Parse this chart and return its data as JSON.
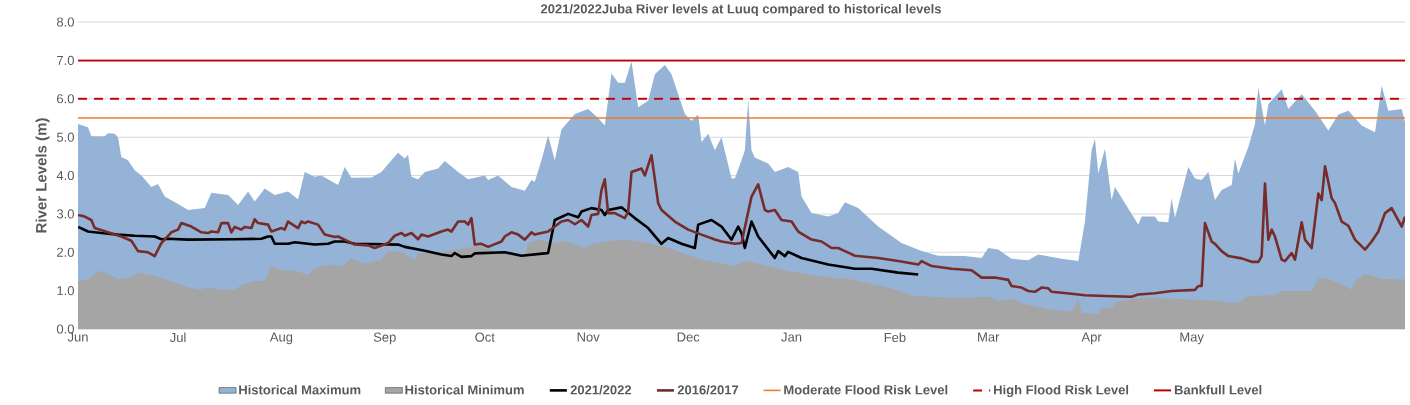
{
  "chart_data": {
    "type": "line",
    "title": "2021/2022Juba River levels at Luuq compared to historical levels",
    "ylabel": "River Levels (m)",
    "xlim": [
      "2021-06-01",
      "2022-07-04"
    ],
    "ylim": [
      0,
      8
    ],
    "xticks": [
      {
        "value": "2021-06-01",
        "label": "Jun"
      },
      {
        "value": "2021-07-01",
        "label": "Jul"
      },
      {
        "value": "2021-08-01",
        "label": "Aug"
      },
      {
        "value": "2021-09-01",
        "label": "Sep"
      },
      {
        "value": "2021-10-01",
        "label": "Oct"
      },
      {
        "value": "2021-11-01",
        "label": "Nov"
      },
      {
        "value": "2021-12-01",
        "label": "Dec"
      },
      {
        "value": "2022-01-01",
        "label": "Jan"
      },
      {
        "value": "2022-02-01",
        "label": "Feb"
      },
      {
        "value": "2022-03-01",
        "label": "Mar"
      },
      {
        "value": "2022-04-01",
        "label": "Apr"
      },
      {
        "value": "2022-05-01",
        "label": "May"
      }
    ],
    "yticks": [
      {
        "value": 0,
        "label": "0.0"
      },
      {
        "value": 1,
        "label": "1.0"
      },
      {
        "value": 2,
        "label": "2.0"
      },
      {
        "value": 3,
        "label": "3.0"
      },
      {
        "value": 4,
        "label": "4.0"
      },
      {
        "value": 5,
        "label": "5.0"
      },
      {
        "value": 6,
        "label": "6.0"
      },
      {
        "value": 7,
        "label": "7.0"
      },
      {
        "value": 8,
        "label": "8.0"
      }
    ],
    "grid": "y",
    "legend": "bottom",
    "series": [
      {
        "name": "Historical Maximum",
        "type": "area",
        "color": "#95b3d7",
        "x": [
          "2021-06-01",
          "2021-06-04",
          "2021-06-05",
          "2021-06-09",
          "2021-06-10",
          "2021-06-12",
          "2021-06-13",
          "2021-06-14",
          "2021-06-16",
          "2021-06-18",
          "2021-06-20",
          "2021-06-23",
          "2021-06-25",
          "2021-06-27",
          "2021-07-01",
          "2021-07-04",
          "2021-07-09",
          "2021-07-11",
          "2021-07-16",
          "2021-07-19",
          "2021-07-22",
          "2021-07-24",
          "2021-07-27",
          "2021-07-30",
          "2021-08-03",
          "2021-08-06",
          "2021-08-08",
          "2021-08-11",
          "2021-08-13",
          "2021-08-18",
          "2021-08-20",
          "2021-08-22",
          "2021-08-28",
          "2021-08-31",
          "2021-09-03",
          "2021-09-05",
          "2021-09-07",
          "2021-09-08",
          "2021-09-09",
          "2021-09-11",
          "2021-09-13",
          "2021-09-17",
          "2021-09-19",
          "2021-09-23",
          "2021-09-26",
          "2021-10-01",
          "2021-10-02",
          "2021-10-05",
          "2021-10-09",
          "2021-10-13",
          "2021-10-15",
          "2021-10-16",
          "2021-10-18",
          "2021-10-20",
          "2021-10-22",
          "2021-10-24",
          "2021-10-28",
          "2021-11-01",
          "2021-11-04",
          "2021-11-06",
          "2021-11-08",
          "2021-11-10",
          "2021-11-12",
          "2021-11-14",
          "2021-11-16",
          "2021-11-19",
          "2021-11-21",
          "2021-11-24",
          "2021-11-26",
          "2021-11-30",
          "2021-12-02",
          "2021-12-04",
          "2021-12-05",
          "2021-12-07",
          "2021-12-09",
          "2021-12-11",
          "2021-12-14",
          "2021-12-15",
          "2021-12-17",
          "2021-12-18",
          "2021-12-19",
          "2021-12-20",
          "2021-12-21",
          "2021-12-25",
          "2021-12-27",
          "2021-12-31",
          "2022-01-03",
          "2022-01-04",
          "2022-01-07",
          "2022-01-12",
          "2022-01-15",
          "2022-01-17",
          "2022-01-21",
          "2022-01-27",
          "2022-02-03",
          "2022-02-09",
          "2022-02-14",
          "2022-02-22",
          "2022-02-27",
          "2022-03-01",
          "2022-03-04",
          "2022-03-08",
          "2022-03-13",
          "2022-03-16",
          "2022-03-23",
          "2022-03-28",
          "2022-03-30",
          "2022-04-01",
          "2022-04-02",
          "2022-04-03",
          "2022-04-05",
          "2022-04-07",
          "2022-04-08",
          "2022-04-11",
          "2022-04-15",
          "2022-04-16",
          "2022-04-20",
          "2022-04-21",
          "2022-04-24",
          "2022-04-25",
          "2022-04-26",
          "2022-04-29",
          "2022-04-30",
          "2022-05-02",
          "2022-05-04",
          "2022-05-06",
          "2022-05-08",
          "2022-05-10",
          "2022-05-13",
          "2022-05-14",
          "2022-05-15",
          "2022-05-18",
          "2022-05-20",
          "2022-05-21",
          "2022-05-23",
          "2022-05-24",
          "2022-05-28",
          "2022-05-30",
          "2022-06-03",
          "2022-06-07",
          "2022-06-11",
          "2022-06-14",
          "2022-06-17",
          "2022-06-21",
          "2022-06-25",
          "2022-06-27",
          "2022-06-29",
          "2022-07-03",
          "2022-07-04"
        ],
        "values": [
          5.34,
          5.26,
          5.02,
          5.02,
          5.1,
          5.09,
          5.0,
          4.48,
          4.4,
          4.14,
          4.0,
          3.7,
          3.78,
          3.45,
          3.26,
          3.1,
          3.15,
          3.55,
          3.49,
          3.23,
          3.58,
          3.32,
          3.66,
          3.49,
          3.58,
          3.38,
          4.09,
          3.97,
          4.0,
          3.75,
          4.22,
          3.94,
          3.95,
          4.09,
          4.4,
          4.59,
          4.44,
          4.54,
          3.97,
          3.9,
          4.09,
          4.18,
          4.38,
          4.09,
          3.9,
          4.0,
          3.88,
          4.0,
          3.7,
          3.6,
          3.88,
          3.84,
          4.4,
          5.04,
          4.4,
          5.2,
          5.6,
          5.73,
          5.5,
          5.3,
          6.66,
          6.42,
          6.42,
          6.97,
          5.78,
          5.95,
          6.64,
          6.88,
          6.64,
          5.6,
          5.43,
          5.59,
          4.87,
          5.09,
          4.66,
          5.0,
          3.92,
          3.92,
          4.4,
          4.66,
          5.97,
          4.66,
          4.47,
          4.31,
          4.09,
          4.22,
          4.09,
          3.45,
          3.02,
          2.93,
          3.02,
          3.3,
          3.15,
          2.67,
          2.24,
          2.03,
          1.91,
          1.9,
          1.85,
          2.11,
          2.07,
          1.83,
          1.79,
          1.94,
          1.83,
          1.77,
          2.8,
          4.66,
          4.96,
          4.05,
          4.7,
          3.36,
          3.7,
          3.28,
          2.72,
          2.93,
          2.93,
          2.8,
          2.78,
          3.41,
          2.89,
          3.88,
          4.22,
          3.92,
          3.88,
          4.09,
          3.36,
          3.62,
          3.75,
          4.44,
          4.05,
          4.74,
          5.34,
          6.29,
          5.3,
          5.86,
          6.25,
          5.73,
          6.12,
          5.69,
          5.17,
          5.59,
          5.69,
          5.3,
          5.13,
          6.34,
          5.69,
          5.73,
          5.39
        ]
      },
      {
        "name": "Historical Minimum",
        "type": "area",
        "color": "#a5a5a5",
        "x": [
          "2021-06-01",
          "2021-06-04",
          "2021-06-07",
          "2021-06-09",
          "2021-06-13",
          "2021-06-16",
          "2021-06-19",
          "2021-06-25",
          "2021-06-30",
          "2021-07-03",
          "2021-07-07",
          "2021-07-10",
          "2021-07-14",
          "2021-07-18",
          "2021-07-20",
          "2021-07-24",
          "2021-07-27",
          "2021-07-29",
          "2021-07-31",
          "2021-08-05",
          "2021-08-09",
          "2021-08-11",
          "2021-08-16",
          "2021-08-19",
          "2021-08-22",
          "2021-08-26",
          "2021-08-31",
          "2021-09-02",
          "2021-09-06",
          "2021-09-10",
          "2021-09-11",
          "2021-09-16",
          "2021-09-29",
          "2021-10-05",
          "2021-10-13",
          "2021-10-14",
          "2021-10-17",
          "2021-10-22",
          "2021-10-25",
          "2021-10-31",
          "2021-11-03",
          "2021-11-12",
          "2021-11-19",
          "2021-11-25",
          "2021-12-05",
          "2021-12-15",
          "2021-12-18",
          "2021-12-23",
          "2021-12-31",
          "2022-01-09",
          "2022-01-19",
          "2022-01-28",
          "2022-02-04",
          "2022-02-07",
          "2022-02-17",
          "2022-02-22",
          "2022-03-02",
          "2022-03-04",
          "2022-03-08",
          "2022-03-12",
          "2022-03-20",
          "2022-03-26",
          "2022-03-28",
          "2022-03-29",
          "2022-04-03",
          "2022-04-04",
          "2022-04-07",
          "2022-04-09",
          "2022-04-17",
          "2022-05-10",
          "2022-05-11",
          "2022-05-15",
          "2022-05-18",
          "2022-05-26",
          "2022-05-28",
          "2022-06-06",
          "2022-06-08",
          "2022-06-11",
          "2022-06-16",
          "2022-06-18",
          "2022-06-19",
          "2022-06-22",
          "2022-06-27",
          "2022-07-04"
        ],
        "values": [
          1.25,
          1.29,
          1.51,
          1.47,
          1.31,
          1.31,
          1.47,
          1.36,
          1.22,
          1.12,
          1.02,
          1.08,
          1.02,
          1.03,
          1.14,
          1.25,
          1.25,
          1.64,
          1.55,
          1.51,
          1.42,
          1.59,
          1.68,
          1.62,
          1.84,
          1.71,
          1.81,
          2.03,
          2.01,
          1.81,
          1.98,
          1.98,
          2.16,
          1.98,
          1.91,
          2.24,
          2.33,
          2.24,
          2.3,
          2.11,
          2.24,
          2.33,
          2.24,
          2.11,
          1.81,
          1.64,
          1.77,
          1.68,
          1.51,
          1.38,
          1.29,
          1.12,
          0.95,
          0.86,
          0.82,
          0.82,
          0.84,
          0.73,
          0.79,
          0.65,
          0.5,
          0.45,
          0.78,
          0.43,
          0.39,
          0.56,
          0.56,
          0.72,
          0.82,
          0.73,
          0.69,
          0.69,
          0.86,
          0.88,
          0.99,
          0.99,
          1.32,
          1.31,
          1.12,
          1.02,
          1.25,
          1.44,
          1.31,
          1.29
        ]
      },
      {
        "name": "2021/2022",
        "color": "#000000",
        "x": [
          "2021-06-01",
          "2021-06-04",
          "2021-06-08",
          "2021-06-13",
          "2021-06-18",
          "2021-06-24",
          "2021-06-26",
          "2021-06-28",
          "2021-07-04",
          "2021-07-18",
          "2021-07-26",
          "2021-07-28",
          "2021-07-29",
          "2021-07-30",
          "2021-08-03",
          "2021-08-05",
          "2021-08-11",
          "2021-08-15",
          "2021-08-17",
          "2021-08-20",
          "2021-08-23",
          "2021-09-05",
          "2021-09-07",
          "2021-09-13",
          "2021-09-18",
          "2021-09-21",
          "2021-09-22",
          "2021-09-24",
          "2021-09-27",
          "2021-09-28",
          "2021-10-07",
          "2021-10-12",
          "2021-10-19",
          "2021-10-20",
          "2021-10-22",
          "2021-10-26",
          "2021-10-29",
          "2021-10-30",
          "2021-11-02",
          "2021-11-05",
          "2021-11-06",
          "2021-11-07",
          "2021-11-11",
          "2021-11-12",
          "2021-11-15",
          "2021-11-19",
          "2021-11-23",
          "2021-11-25",
          "2021-11-29",
          "2021-12-03",
          "2021-12-04",
          "2021-12-08",
          "2021-12-11",
          "2021-12-14",
          "2021-12-16",
          "2021-12-17",
          "2021-12-18",
          "2021-12-20",
          "2021-12-22",
          "2021-12-27",
          "2021-12-28",
          "2021-12-30",
          "2021-12-31",
          "2022-01-04",
          "2022-01-12",
          "2022-01-20",
          "2022-01-25",
          "2022-02-02",
          "2022-02-08"
        ],
        "values": [
          2.66,
          2.54,
          2.5,
          2.46,
          2.43,
          2.41,
          2.34,
          2.35,
          2.33,
          2.34,
          2.35,
          2.41,
          2.41,
          2.22,
          2.22,
          2.26,
          2.2,
          2.22,
          2.28,
          2.28,
          2.22,
          2.2,
          2.14,
          2.04,
          1.94,
          1.9,
          1.98,
          1.88,
          1.9,
          1.97,
          2.0,
          1.91,
          1.97,
          1.98,
          2.84,
          3.0,
          2.91,
          3.06,
          3.15,
          3.1,
          2.97,
          3.1,
          3.17,
          3.1,
          2.89,
          2.63,
          2.22,
          2.37,
          2.22,
          2.11,
          2.72,
          2.84,
          2.67,
          2.33,
          2.67,
          2.5,
          2.11,
          2.8,
          2.41,
          1.85,
          2.03,
          1.9,
          2.01,
          1.85,
          1.68,
          1.57,
          1.57,
          1.47,
          1.42
        ]
      },
      {
        "name": "2016/2017",
        "color": "#772c2a",
        "x": [
          "2021-06-01",
          "2021-06-03",
          "2021-06-05",
          "2021-06-06",
          "2021-06-10",
          "2021-06-14",
          "2021-06-17",
          "2021-06-19",
          "2021-06-22",
          "2021-06-24",
          "2021-06-26",
          "2021-06-29",
          "2021-07-01",
          "2021-07-02",
          "2021-07-05",
          "2021-07-08",
          "2021-07-10",
          "2021-07-11",
          "2021-07-13",
          "2021-07-14",
          "2021-07-16",
          "2021-07-17",
          "2021-07-18",
          "2021-07-20",
          "2021-07-21",
          "2021-07-23",
          "2021-07-24",
          "2021-07-25",
          "2021-07-28",
          "2021-07-29",
          "2021-08-01",
          "2021-08-02",
          "2021-08-03",
          "2021-08-06",
          "2021-08-07",
          "2021-08-08",
          "2021-08-09",
          "2021-08-12",
          "2021-08-14",
          "2021-08-17",
          "2021-08-18",
          "2021-08-23",
          "2021-08-27",
          "2021-08-29",
          "2021-09-02",
          "2021-09-04",
          "2021-09-06",
          "2021-09-07",
          "2021-09-09",
          "2021-09-11",
          "2021-09-12",
          "2021-09-14",
          "2021-09-18",
          "2021-09-20",
          "2021-09-21",
          "2021-09-23",
          "2021-09-25",
          "2021-09-26",
          "2021-09-27",
          "2021-09-28",
          "2021-09-30",
          "2021-10-02",
          "2021-10-06",
          "2021-10-07",
          "2021-10-09",
          "2021-10-11",
          "2021-10-13",
          "2021-10-15",
          "2021-10-16",
          "2021-10-20",
          "2021-10-24",
          "2021-10-26",
          "2021-10-28",
          "2021-10-30",
          "2021-11-01",
          "2021-11-02",
          "2021-11-04",
          "2021-11-05",
          "2021-11-06",
          "2021-11-07",
          "2021-11-09",
          "2021-11-12",
          "2021-11-13",
          "2021-11-14",
          "2021-11-17",
          "2021-11-18",
          "2021-11-20",
          "2021-11-22",
          "2021-11-23",
          "2021-11-27",
          "2021-12-01",
          "2021-12-05",
          "2021-12-09",
          "2021-12-11",
          "2021-12-15",
          "2021-12-17",
          "2021-12-20",
          "2021-12-22",
          "2021-12-24",
          "2021-12-25",
          "2021-12-27",
          "2021-12-29",
          "2022-01-01",
          "2022-01-03",
          "2022-01-07",
          "2022-01-10",
          "2022-01-13",
          "2022-01-15",
          "2022-01-17",
          "2022-01-20",
          "2022-01-27",
          "2022-02-02",
          "2022-02-08",
          "2022-02-09",
          "2022-02-12",
          "2022-02-18",
          "2022-02-24",
          "2022-02-27",
          "2022-03-03",
          "2022-03-07",
          "2022-03-08",
          "2022-03-11",
          "2022-03-13",
          "2022-03-15",
          "2022-03-17",
          "2022-03-19",
          "2022-03-20",
          "2022-03-26",
          "2022-03-30",
          "2022-04-05",
          "2022-04-13",
          "2022-04-15",
          "2022-04-20",
          "2022-04-25",
          "2022-05-02",
          "2022-05-03",
          "2022-05-04",
          "2022-05-05",
          "2022-05-07",
          "2022-05-08",
          "2022-05-10",
          "2022-05-12",
          "2022-05-16",
          "2022-05-19",
          "2022-05-21",
          "2022-05-22",
          "2022-05-23",
          "2022-05-24",
          "2022-05-25",
          "2022-05-26",
          "2022-05-28",
          "2022-05-29",
          "2022-05-31",
          "2022-06-01",
          "2022-06-03",
          "2022-06-04",
          "2022-06-06",
          "2022-06-08",
          "2022-06-09",
          "2022-06-10",
          "2022-06-12",
          "2022-06-13",
          "2022-06-15",
          "2022-06-17",
          "2022-06-19",
          "2022-06-22",
          "2022-06-24",
          "2022-06-26",
          "2022-06-28",
          "2022-06-30",
          "2022-07-03",
          "2022-07-04"
        ],
        "values": [
          2.97,
          2.93,
          2.84,
          2.63,
          2.52,
          2.41,
          2.3,
          2.03,
          2.0,
          1.9,
          2.24,
          2.52,
          2.59,
          2.76,
          2.67,
          2.52,
          2.5,
          2.54,
          2.52,
          2.76,
          2.76,
          2.52,
          2.66,
          2.59,
          2.66,
          2.63,
          2.86,
          2.76,
          2.72,
          2.54,
          2.63,
          2.59,
          2.8,
          2.63,
          2.8,
          2.76,
          2.8,
          2.72,
          2.46,
          2.4,
          2.41,
          2.2,
          2.18,
          2.11,
          2.24,
          2.43,
          2.5,
          2.43,
          2.5,
          2.34,
          2.46,
          2.41,
          2.54,
          2.59,
          2.54,
          2.8,
          2.8,
          2.72,
          2.89,
          2.2,
          2.22,
          2.14,
          2.28,
          2.41,
          2.52,
          2.46,
          2.33,
          2.52,
          2.46,
          2.54,
          2.8,
          2.84,
          2.73,
          2.84,
          2.67,
          2.97,
          3.0,
          3.62,
          3.9,
          3.02,
          3.02,
          2.89,
          3.06,
          4.09,
          4.18,
          4.0,
          4.53,
          3.28,
          3.1,
          2.8,
          2.59,
          2.46,
          2.33,
          2.28,
          2.22,
          2.24,
          3.45,
          3.77,
          3.1,
          3.06,
          3.1,
          2.84,
          2.8,
          2.54,
          2.33,
          2.28,
          2.11,
          2.11,
          2.03,
          1.91,
          1.85,
          1.77,
          1.68,
          1.77,
          1.64,
          1.57,
          1.53,
          1.34,
          1.34,
          1.28,
          1.12,
          1.08,
          0.99,
          0.97,
          1.08,
          1.06,
          0.97,
          0.92,
          0.88,
          0.86,
          0.84,
          0.9,
          0.93,
          0.99,
          1.02,
          1.12,
          1.12,
          2.76,
          2.28,
          2.22,
          2.03,
          1.9,
          1.84,
          1.75,
          1.75,
          1.9,
          3.79,
          2.33,
          2.59,
          2.41,
          1.81,
          1.77,
          1.98,
          1.81,
          2.78,
          2.33,
          2.11,
          3.53,
          3.36,
          4.24,
          3.41,
          3.28,
          2.8,
          2.69,
          2.33,
          2.07,
          2.28,
          2.54,
          3.02,
          3.15,
          2.67,
          2.93
        ]
      }
    ],
    "ref_lines": [
      {
        "axis": "y",
        "value": 5.5,
        "label": "Moderate Flood Risk Level",
        "color": "#ed7d31",
        "line_style": "solid"
      },
      {
        "axis": "y",
        "value": 6,
        "label": "High Flood Risk Level",
        "color": "#c00000",
        "line_style": "dashed"
      },
      {
        "axis": "y",
        "value": 7,
        "label": "Bankfull Level",
        "color": "#c00000",
        "line_style": "solid"
      }
    ]
  }
}
